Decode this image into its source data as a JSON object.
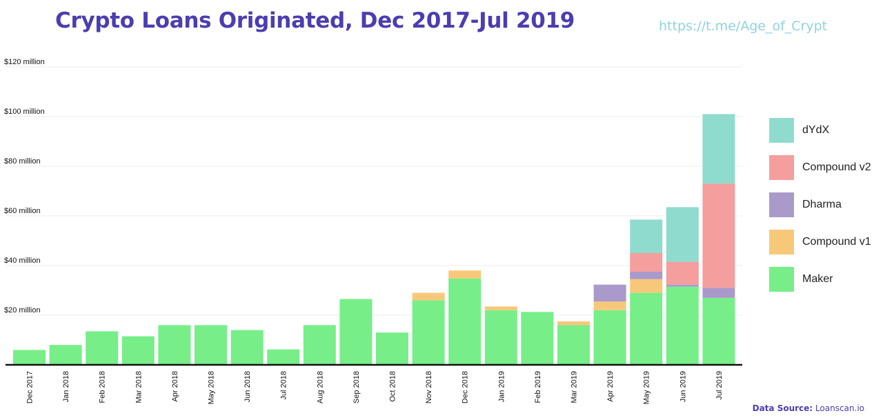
{
  "title": "Crypto Loans Originated, Dec 2017-Jul 2019",
  "watermark": "https://t.me/Age_of_Crypt",
  "source": {
    "label": "Data Source:",
    "value": "Loanscan.io"
  },
  "chart_data": {
    "type": "bar",
    "stacked": true,
    "title": "Crypto Loans Originated, Dec 2017-Jul 2019",
    "xlabel": "",
    "ylabel": "",
    "ylim": [
      0,
      120
    ],
    "yticks": [
      {
        "value": 20,
        "label": "$20 million"
      },
      {
        "value": 40,
        "label": "$40 million"
      },
      {
        "value": 60,
        "label": "$60 million"
      },
      {
        "value": 80,
        "label": "$80 million"
      },
      {
        "value": 100,
        "label": "$100 million"
      },
      {
        "value": 120,
        "label": "$120 million"
      }
    ],
    "grid": true,
    "legend": "right",
    "categories": [
      "Dec 2017",
      "Jan 2018",
      "Feb 2018",
      "Mar 2018",
      "Apr 2018",
      "May 2018",
      "Jun 2018",
      "Jul 2018",
      "Aug 2018",
      "Sep 2018",
      "Oct 2018",
      "Nov 2018",
      "Dec 2018",
      "Jan 2019",
      "Feb 2019",
      "Mar 2019",
      "Apr 2019",
      "May 2019",
      "Jun 2019",
      "Jul 2019"
    ],
    "series": [
      {
        "name": "Maker",
        "color": "#77ee88",
        "values": [
          6,
          8,
          13.5,
          11.5,
          16,
          16,
          14,
          6.2,
          16,
          26.5,
          13,
          26,
          34.8,
          22,
          21.3,
          16,
          22,
          29,
          31.5,
          27
        ]
      },
      {
        "name": "Compound v1",
        "color": "#f8c87a",
        "values": [
          0,
          0,
          0,
          0,
          0,
          0,
          0,
          0,
          0,
          0,
          0,
          3,
          3.2,
          1.5,
          0,
          1.5,
          3.5,
          5.5,
          0,
          0
        ]
      },
      {
        "name": "Dharma",
        "color": "#a99acb",
        "values": [
          0,
          0,
          0,
          0,
          0,
          0,
          0,
          0,
          0,
          0,
          0,
          0,
          0,
          0,
          0,
          0,
          6.8,
          3,
          0.8,
          4
        ]
      },
      {
        "name": "Compound v2",
        "color": "#f49e9e",
        "values": [
          0,
          0,
          0,
          0,
          0,
          0,
          0,
          0,
          0,
          0,
          0,
          0,
          0,
          0,
          0,
          0,
          0,
          7.5,
          9.2,
          42
        ]
      },
      {
        "name": "dYdX",
        "color": "#8fdccf",
        "values": [
          0,
          0,
          0,
          0,
          0,
          0,
          0,
          0,
          0,
          0,
          0,
          0,
          0,
          0,
          0,
          0,
          0,
          13.5,
          22,
          28
        ]
      }
    ]
  }
}
